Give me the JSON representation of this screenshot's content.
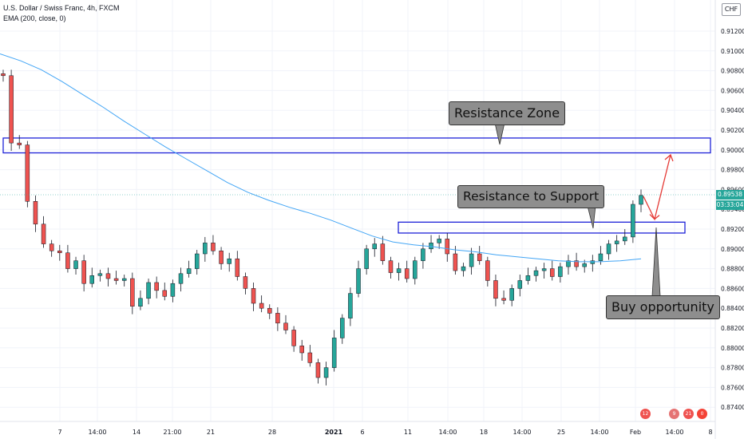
{
  "legend": {
    "title": "U.S. Dollar / Swiss Franc, 4h, FXCM",
    "indicator": "EMA (200, close, 0)"
  },
  "currency": "CHF",
  "last_price": "0.89538",
  "countdown": "03:33:04",
  "colors": {
    "up": "#26a69a",
    "down": "#ef5350",
    "ema": "#42a5f5",
    "zone": "#1e22d8",
    "arrow": "#e53935",
    "callout": "#8e8e8e"
  },
  "annotations": {
    "resistance_zone": "Resistance Zone",
    "resistance_to_support": "Resistance to Support",
    "buy_opportunity": "Buy opportunity"
  },
  "events": [
    "12",
    "9",
    "21",
    "0"
  ],
  "chart_data": {
    "type": "candlestick",
    "title": "U.S. Dollar / Swiss Franc, 4h, FXCM",
    "y_axis_ticks": [
      "0.91200",
      "0.91000",
      "0.90800",
      "0.90600",
      "0.90400",
      "0.90200",
      "0.90000",
      "0.89800",
      "0.89600",
      "0.89400",
      "0.89200",
      "0.89000",
      "0.88800",
      "0.88600",
      "0.88400",
      "0.88200",
      "0.88000",
      "0.87800",
      "0.87600",
      "0.87400"
    ],
    "ylim": [
      0.8735,
      0.9165
    ],
    "x_axis_ticks": [
      "7",
      "14:00",
      "14",
      "21:00",
      "21",
      "28",
      "2021",
      "6",
      "11",
      "14:00",
      "18",
      "14:00",
      "25",
      "14:00",
      "Feb",
      "14:00",
      "8"
    ],
    "series": [
      {
        "name": "EMA (200, close, 0)",
        "type": "line",
        "values": [
          0.9097,
          0.909,
          0.9081,
          0.9069,
          0.9056,
          0.9043,
          0.9029,
          0.9016,
          0.9003,
          0.8991,
          0.8979,
          0.8967,
          0.8957,
          0.8949,
          0.8942,
          0.8936,
          0.8929,
          0.8921,
          0.8913,
          0.8907,
          0.8904,
          0.8902,
          0.8899,
          0.8897,
          0.8894,
          0.8892,
          0.889,
          0.8888,
          0.8887,
          0.8887,
          0.8888,
          0.889
        ]
      },
      {
        "name": "USD/CHF 4h close",
        "type": "candlestick",
        "close": [
          0.9075,
          0.9007,
          0.9005,
          0.8948,
          0.8925,
          0.8905,
          0.8898,
          0.8896,
          0.888,
          0.8888,
          0.8865,
          0.8873,
          0.8875,
          0.887,
          0.8868,
          0.887,
          0.8842,
          0.885,
          0.8866,
          0.8858,
          0.8852,
          0.8865,
          0.8875,
          0.888,
          0.8895,
          0.8906,
          0.8898,
          0.8885,
          0.889,
          0.8872,
          0.886,
          0.8845,
          0.884,
          0.8835,
          0.8825,
          0.8818,
          0.8802,
          0.8795,
          0.8785,
          0.877,
          0.878,
          0.881,
          0.883,
          0.8855,
          0.888,
          0.89,
          0.8905,
          0.8888,
          0.8876,
          0.888,
          0.887,
          0.8888,
          0.89,
          0.8906,
          0.891,
          0.8895,
          0.8878,
          0.8882,
          0.8895,
          0.8888,
          0.8868,
          0.885,
          0.8848,
          0.886,
          0.8868,
          0.8873,
          0.8878,
          0.888,
          0.8872,
          0.8882,
          0.8888,
          0.8882,
          0.8885,
          0.8888,
          0.8895,
          0.8905,
          0.8908,
          0.8912,
          0.8945,
          0.8954
        ]
      }
    ],
    "zones": [
      {
        "label": "Resistance Zone",
        "from": 0.8997,
        "to": 0.9012
      },
      {
        "label": "Resistance to Support",
        "from": 0.8916,
        "to": 0.8927
      }
    ],
    "projection": {
      "pullback_to": 0.893,
      "target": 0.8995
    }
  }
}
